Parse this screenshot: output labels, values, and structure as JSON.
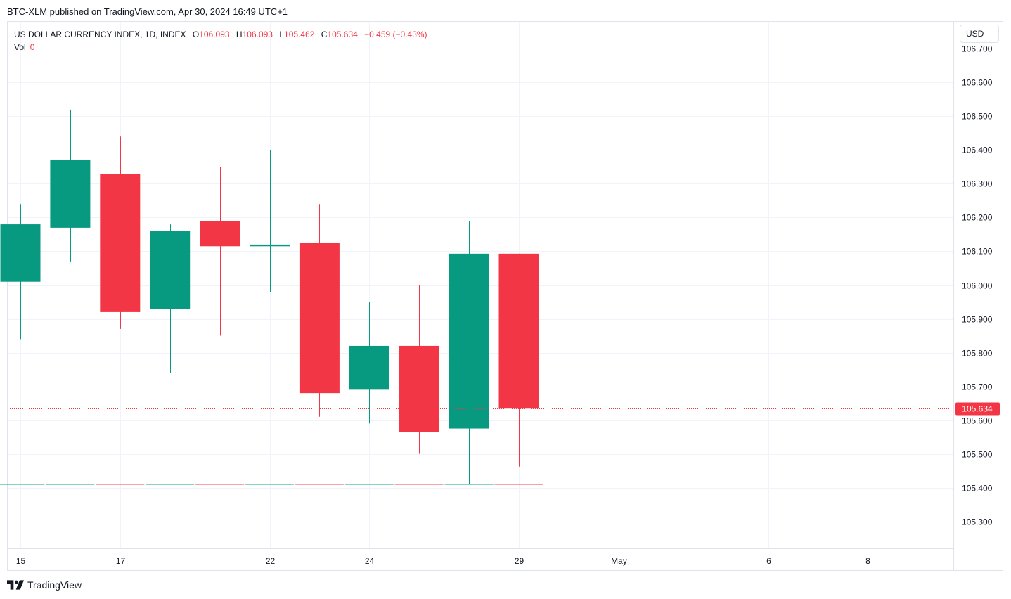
{
  "published_line": "BTC-XLM published on TradingView.com, Apr 30, 2024 16:49 UTC+1",
  "legend": {
    "symbol": "US DOLLAR CURRENCY INDEX, 1D, INDEX",
    "o_label": "O",
    "o_value": "106.093",
    "h_label": "H",
    "h_value": "106.093",
    "l_label": "L",
    "l_value": "105.462",
    "c_label": "C",
    "c_value": "105.634",
    "change": "−0.459 (−0.43%)",
    "vol_label": "Vol",
    "vol_value": "0"
  },
  "unit_button": "USD",
  "footer_brand": "TradingView",
  "footer_logo_icon": "tradingview-logo-icon",
  "colors": {
    "up": "#089981",
    "down": "#f23645",
    "grid": "#f0f3fa",
    "text": "#131722"
  },
  "chart_data": {
    "type": "candlestick",
    "yaxis": {
      "min": 105.22,
      "max": 106.78,
      "ticks": [
        "105.300",
        "105.400",
        "105.500",
        "105.600",
        "105.700",
        "105.800",
        "105.900",
        "106.000",
        "106.100",
        "106.200",
        "106.300",
        "106.400",
        "106.500",
        "106.600",
        "106.700"
      ]
    },
    "xaxis_labels": [
      {
        "day": 0,
        "label": "15"
      },
      {
        "day": 2,
        "label": "17"
      },
      {
        "day": 5,
        "label": "22"
      },
      {
        "day": 7,
        "label": "24"
      },
      {
        "day": 10,
        "label": "29"
      },
      {
        "day": 12,
        "label": "May"
      },
      {
        "day": 15,
        "label": "6"
      },
      {
        "day": 17,
        "label": "8"
      }
    ],
    "candles": [
      {
        "date": "Apr 15",
        "open": 106.01,
        "high": 106.24,
        "low": 105.84,
        "close": 106.18
      },
      {
        "date": "Apr 16",
        "open": 106.17,
        "high": 106.52,
        "low": 106.07,
        "close": 106.37
      },
      {
        "date": "Apr 17",
        "open": 106.33,
        "high": 106.44,
        "low": 105.87,
        "close": 105.92
      },
      {
        "date": "Apr 18",
        "open": 105.93,
        "high": 106.18,
        "low": 105.74,
        "close": 106.16
      },
      {
        "date": "Apr 19",
        "open": 106.19,
        "high": 106.35,
        "low": 105.85,
        "close": 106.115
      },
      {
        "date": "Apr 22",
        "open": 106.115,
        "high": 106.4,
        "low": 105.98,
        "close": 106.12
      },
      {
        "date": "Apr 23",
        "open": 106.125,
        "high": 106.24,
        "low": 105.61,
        "close": 105.68
      },
      {
        "date": "Apr 24",
        "open": 105.69,
        "high": 105.95,
        "low": 105.59,
        "close": 105.82
      },
      {
        "date": "Apr 25",
        "open": 105.82,
        "high": 106.0,
        "low": 105.5,
        "close": 105.565
      },
      {
        "date": "Apr 26",
        "open": 105.575,
        "high": 106.19,
        "low": 105.41,
        "close": 106.093
      },
      {
        "date": "Apr 29",
        "open": 106.093,
        "high": 106.093,
        "low": 105.462,
        "close": 105.634
      }
    ],
    "last_price": 105.634,
    "last_price_label": "105.634",
    "volume": [
      0,
      0,
      0,
      0,
      0,
      0,
      0,
      0,
      0,
      0,
      0
    ]
  }
}
